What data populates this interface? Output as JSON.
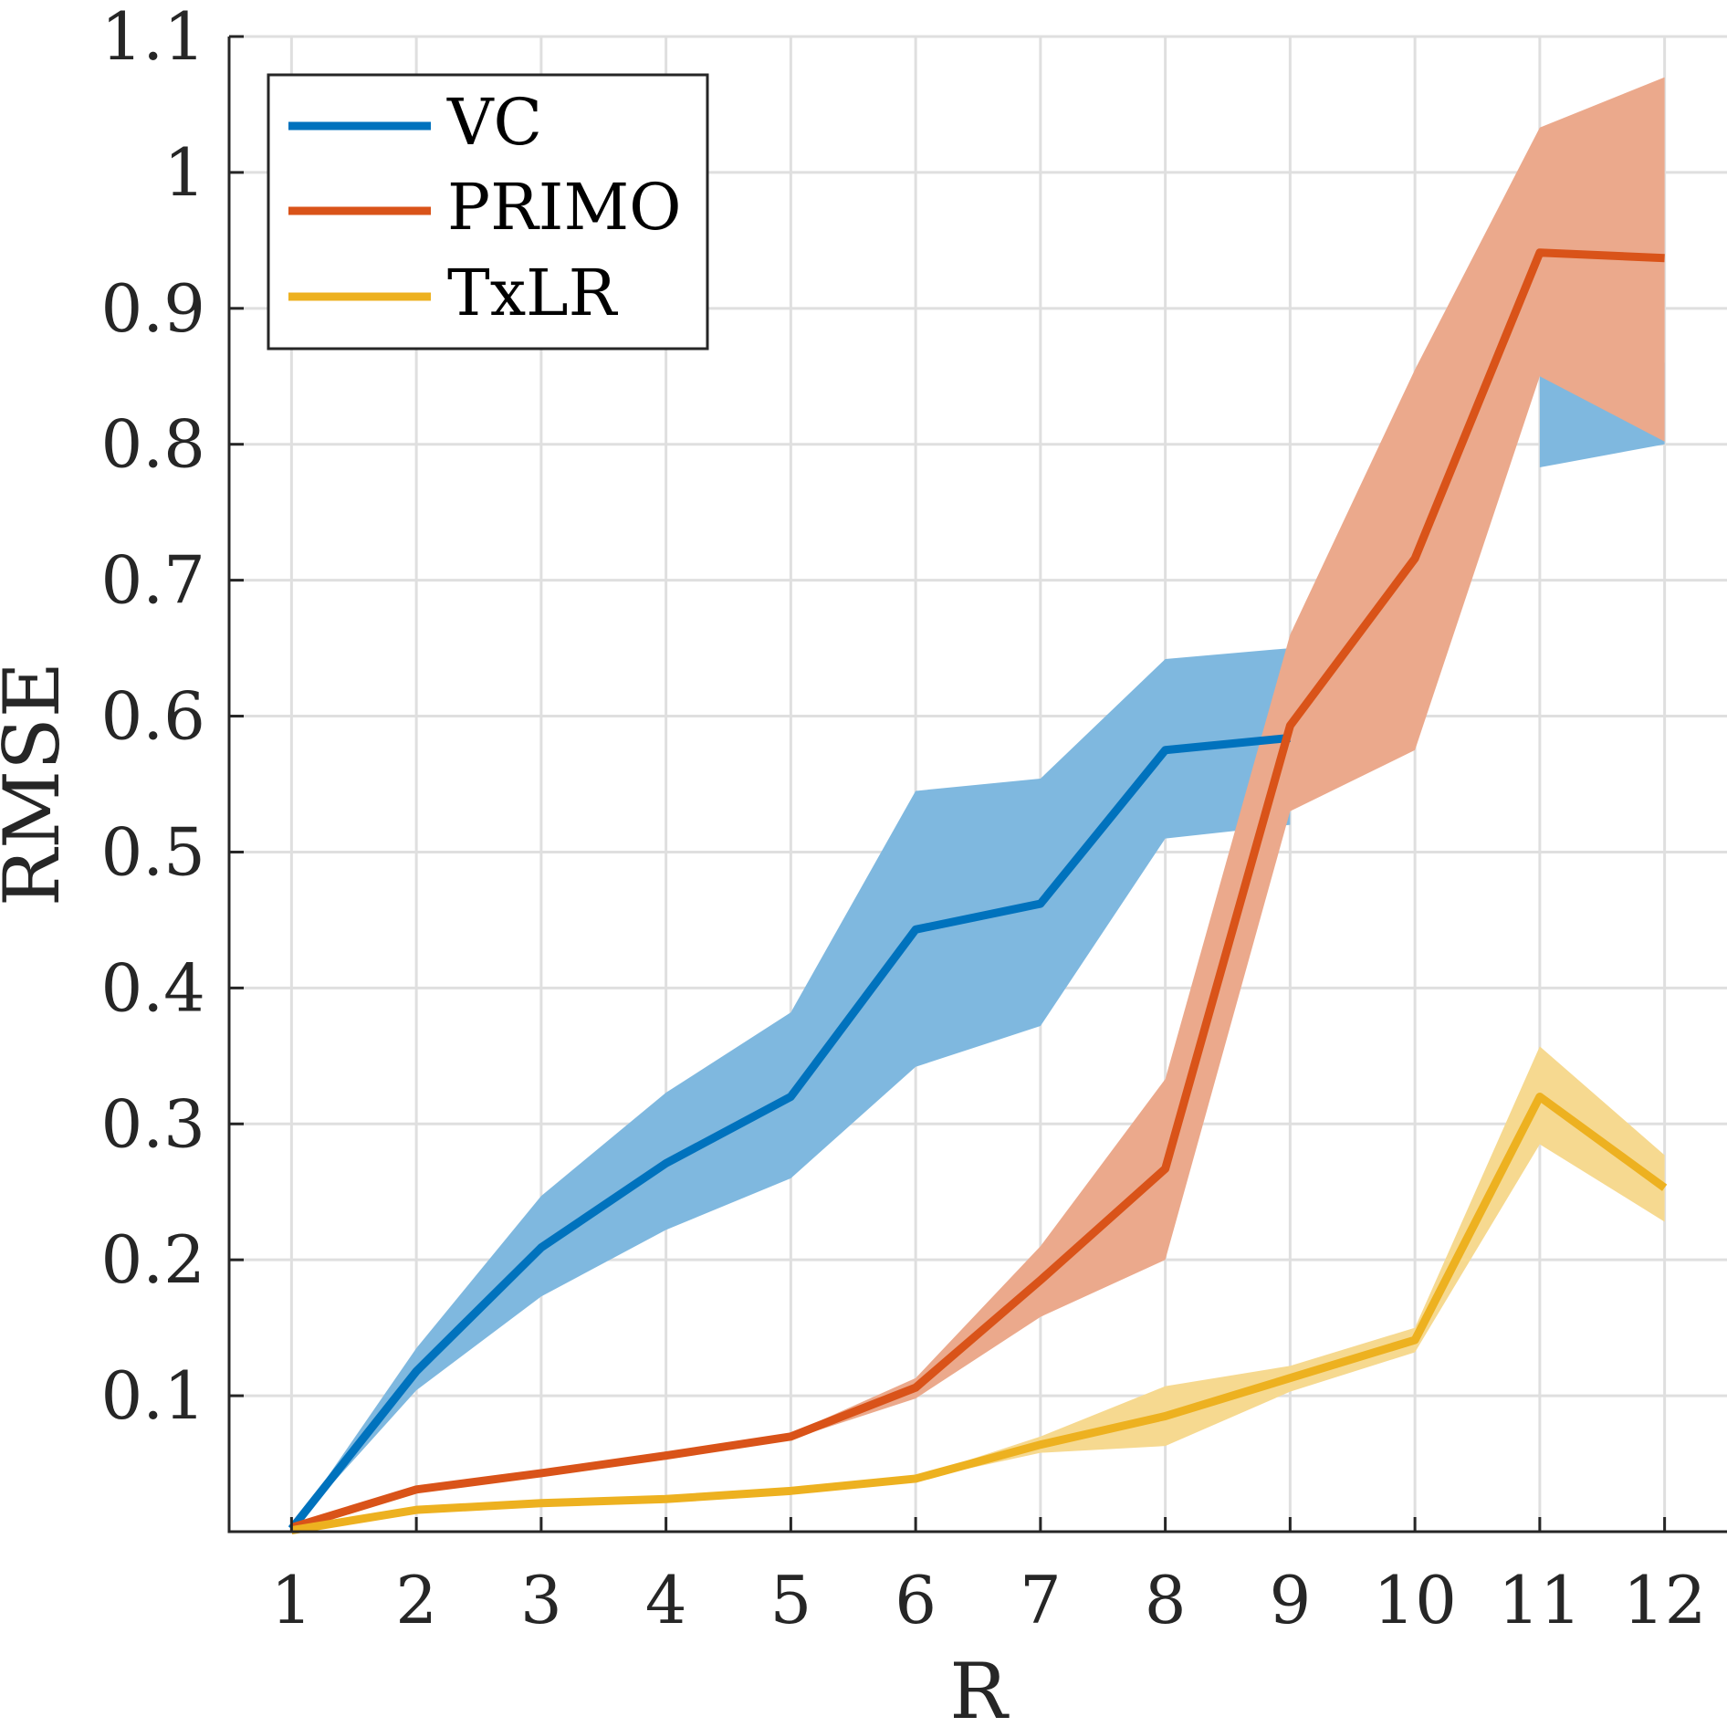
{
  "chart_data": {
    "type": "line",
    "xlabel": "R",
    "ylabel": "RMSE",
    "x": [
      1,
      2,
      3,
      4,
      5,
      6,
      7,
      8,
      9,
      10,
      11,
      12
    ],
    "xlim": [
      0.5,
      12.5
    ],
    "ylim": [
      0,
      1.1
    ],
    "xticks": [
      "1",
      "2",
      "3",
      "4",
      "5",
      "6",
      "7",
      "8",
      "9",
      "10",
      "11",
      "12"
    ],
    "yticks": [
      "0.1",
      "0.2",
      "0.3",
      "0.4",
      "0.5",
      "0.6",
      "0.7",
      "0.8",
      "0.9",
      "1",
      "1.1"
    ],
    "ytick_values": [
      0.1,
      0.2,
      0.3,
      0.4,
      0.5,
      0.6,
      0.7,
      0.8,
      0.9,
      1.0,
      1.1
    ],
    "grid": true,
    "legend_position": "top-left",
    "series": [
      {
        "name": "VC",
        "color": "#0072bd",
        "band_color": "#7fb8df",
        "values": [
          0.002,
          0.118,
          0.209,
          0.271,
          0.32,
          0.443,
          0.462,
          0.575,
          0.584,
          null,
          null,
          null
        ],
        "upper": [
          0.002,
          0.135,
          0.247,
          0.323,
          0.382,
          0.545,
          0.554,
          0.642,
          0.65,
          null,
          0.85,
          0.86
        ],
        "lower": [
          0.002,
          0.104,
          0.173,
          0.222,
          0.26,
          0.342,
          0.372,
          0.51,
          0.52,
          null,
          0.783,
          0.8
        ]
      },
      {
        "name": "PRIMO",
        "color": "#d95319",
        "band_color": "#eba98c",
        "values": [
          0.003,
          0.031,
          0.043,
          0.056,
          0.07,
          0.106,
          0.185,
          0.267,
          0.593,
          0.716,
          0.941,
          0.937
        ],
        "upper": [
          0.003,
          0.032,
          0.044,
          0.057,
          0.072,
          0.113,
          0.21,
          0.333,
          0.66,
          0.855,
          1.033,
          1.07
        ],
        "lower": [
          0.003,
          0.03,
          0.042,
          0.055,
          0.068,
          0.098,
          0.158,
          0.2,
          0.53,
          0.575,
          0.85,
          0.802
        ]
      },
      {
        "name": "TxLR",
        "color": "#edb120",
        "band_color": "#f6d990",
        "values": [
          0.001,
          0.016,
          0.021,
          0.024,
          0.03,
          0.039,
          0.064,
          0.085,
          0.113,
          0.141,
          0.32,
          0.253
        ],
        "upper": [
          0.001,
          0.017,
          0.022,
          0.025,
          0.031,
          0.04,
          0.07,
          0.107,
          0.122,
          0.15,
          0.357,
          0.277
        ],
        "lower": [
          0.001,
          0.015,
          0.02,
          0.023,
          0.029,
          0.038,
          0.058,
          0.063,
          0.103,
          0.132,
          0.285,
          0.228
        ]
      }
    ]
  }
}
